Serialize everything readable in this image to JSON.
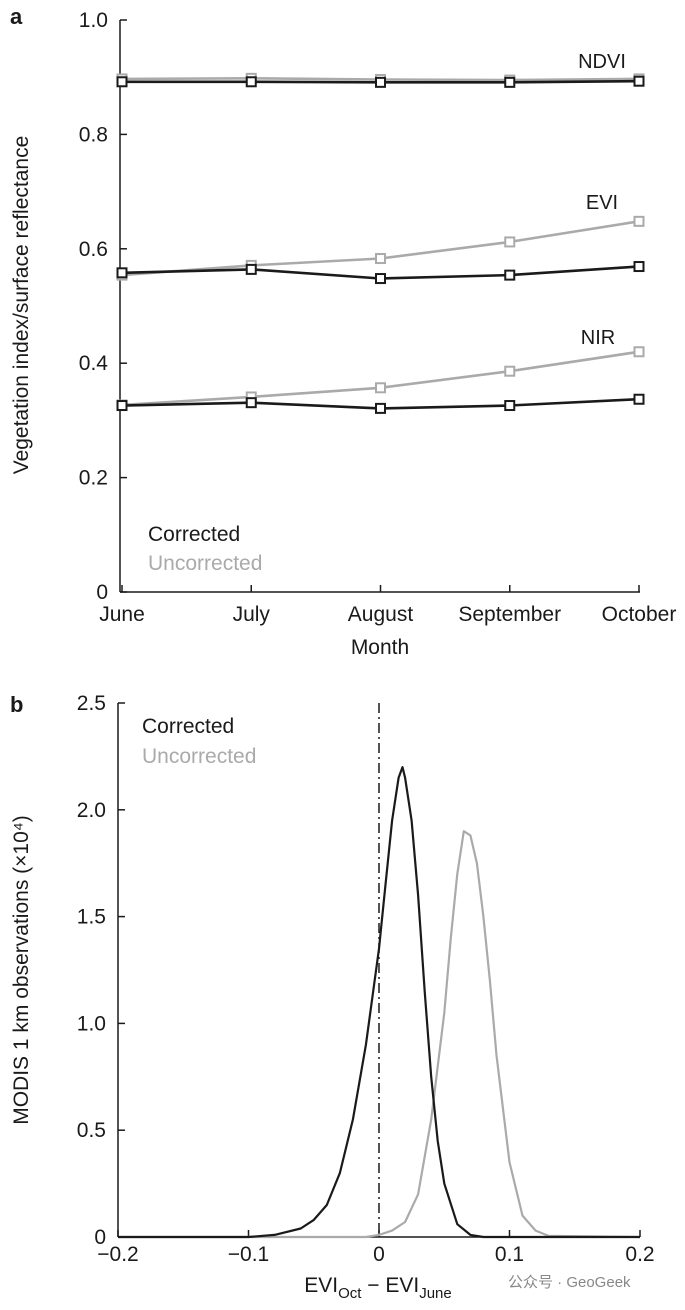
{
  "chart_data": [
    {
      "panel": "a",
      "type": "line",
      "categories": [
        "June",
        "July",
        "August",
        "September",
        "October"
      ],
      "ylim": [
        0,
        1.0
      ],
      "yticks": [
        "0",
        "0.2",
        "0.4",
        "0.6",
        "0.8",
        "1.0"
      ],
      "ylabel": "Vegetation index/surface reflectance",
      "xlabel": "Month",
      "legend": {
        "corrected": "Corrected",
        "uncorrected": "Uncorrected"
      },
      "series": [
        {
          "name": "NDVI",
          "variant": "uncorrected",
          "color": "#aaaaaa",
          "values": [
            0.897,
            0.898,
            0.896,
            0.895,
            0.897
          ]
        },
        {
          "name": "NDVI",
          "variant": "corrected",
          "color": "#1a1a1a",
          "values": [
            0.892,
            0.892,
            0.891,
            0.891,
            0.893
          ]
        },
        {
          "name": "EVI",
          "variant": "uncorrected",
          "color": "#aaaaaa",
          "values": [
            0.554,
            0.571,
            0.583,
            0.612,
            0.648
          ]
        },
        {
          "name": "EVI",
          "variant": "corrected",
          "color": "#1a1a1a",
          "values": [
            0.558,
            0.564,
            0.548,
            0.554,
            0.569
          ]
        },
        {
          "name": "NIR",
          "variant": "uncorrected",
          "color": "#aaaaaa",
          "values": [
            0.327,
            0.341,
            0.357,
            0.386,
            0.42
          ]
        },
        {
          "name": "NIR",
          "variant": "corrected",
          "color": "#1a1a1a",
          "values": [
            0.326,
            0.331,
            0.321,
            0.326,
            0.337
          ]
        }
      ],
      "series_labels": [
        "NDVI",
        "EVI",
        "NIR"
      ]
    },
    {
      "panel": "b",
      "type": "line",
      "xlim": [
        -0.2,
        0.2
      ],
      "ylim": [
        0,
        2.5
      ],
      "xticks": [
        "−0.2",
        "−0.1",
        "0",
        "0.1",
        "0.2"
      ],
      "yticks": [
        "0",
        "0.5",
        "1.0",
        "1.5",
        "2.0",
        "2.5"
      ],
      "ylabel": "MODIS 1 km observations (×10⁴)",
      "xlabel_main": "EVI",
      "xlabel_sub1": "Oct",
      "xlabel_mid": " − EVI",
      "xlabel_sub2": "June",
      "legend": {
        "corrected": "Corrected",
        "uncorrected": "Uncorrected"
      },
      "reference_line_x": 0,
      "series": [
        {
          "variant": "corrected",
          "color": "#1a1a1a",
          "x": [
            -0.2,
            -0.1,
            -0.08,
            -0.06,
            -0.05,
            -0.04,
            -0.03,
            -0.02,
            -0.01,
            0,
            0.005,
            0.01,
            0.015,
            0.018,
            0.02,
            0.025,
            0.03,
            0.035,
            0.04,
            0.045,
            0.05,
            0.06,
            0.07,
            0.08,
            0.2
          ],
          "y": [
            0,
            0,
            0.01,
            0.04,
            0.08,
            0.15,
            0.3,
            0.55,
            0.9,
            1.35,
            1.65,
            1.95,
            2.15,
            2.2,
            2.15,
            1.95,
            1.6,
            1.15,
            0.75,
            0.45,
            0.25,
            0.06,
            0.01,
            0,
            0
          ]
        },
        {
          "variant": "uncorrected",
          "color": "#aaaaaa",
          "x": [
            -0.2,
            -0.01,
            0,
            0.01,
            0.02,
            0.03,
            0.04,
            0.05,
            0.055,
            0.06,
            0.065,
            0.07,
            0.075,
            0.08,
            0.085,
            0.09,
            0.1,
            0.11,
            0.12,
            0.13,
            0.2
          ],
          "y": [
            0,
            0,
            0.01,
            0.03,
            0.07,
            0.2,
            0.55,
            1.05,
            1.4,
            1.7,
            1.9,
            1.88,
            1.75,
            1.5,
            1.2,
            0.85,
            0.35,
            0.1,
            0.03,
            0.005,
            0
          ]
        }
      ]
    }
  ],
  "watermark": "公众号 · GeoGeek"
}
